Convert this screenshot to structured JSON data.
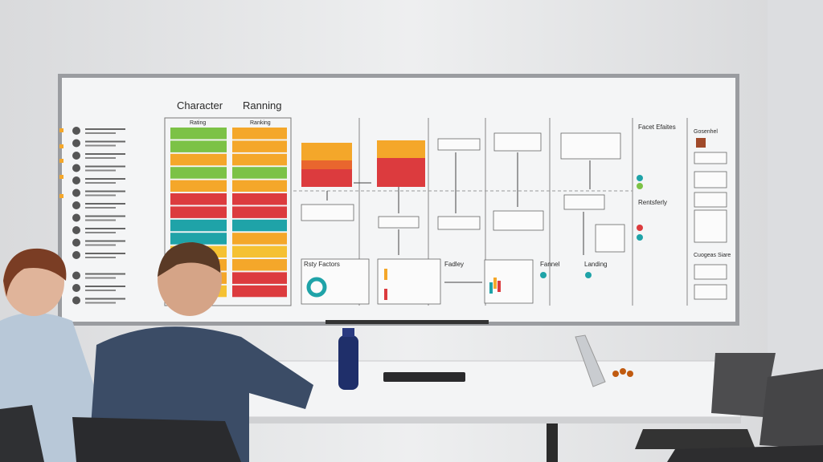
{
  "whiteboard": {
    "title_left": "Character",
    "title_right": "Ranning",
    "column_headers": [
      "Rating",
      "Ranking"
    ],
    "section_labels": [
      "Rsty Factors",
      "Fadley",
      "Fannel",
      "Landing",
      "Facet Efaites",
      "Rentsferly",
      "Gosenhel",
      "Cuogeas Siare"
    ]
  }
}
